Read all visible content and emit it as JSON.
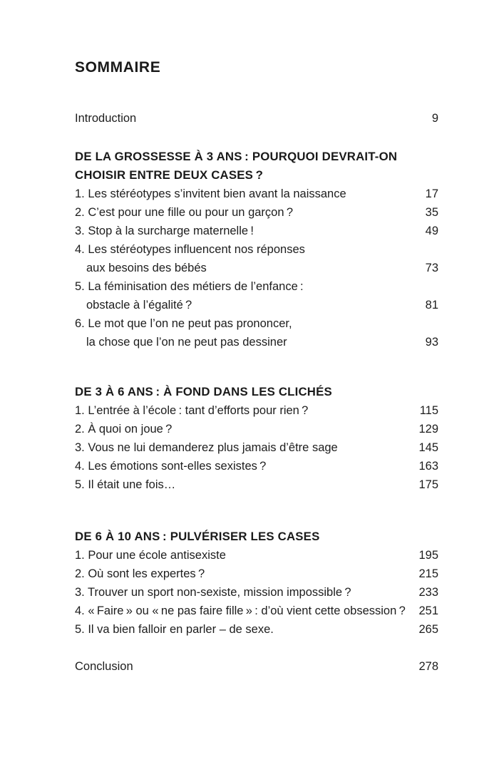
{
  "document": {
    "title": "SOMMAIRE",
    "introduction": {
      "label": "Introduction",
      "page": "9"
    },
    "sections": [
      {
        "heading_lines": [
          "DE LA GROSSESSE À 3 ANS : POURQUOI DEVRAIT-ON",
          "CHOISIR ENTRE DEUX CASES ?"
        ],
        "items": [
          {
            "text": "1. Les stéréotypes s’invitent bien avant la naissance",
            "page": "17"
          },
          {
            "text": "2. C’est pour une fille ou pour un garçon ?",
            "page": "35"
          },
          {
            "text": "3. Stop à la surcharge maternelle !",
            "page": "49"
          },
          {
            "line1": "4. Les stéréotypes influencent nos réponses",
            "line2": "aux besoins des bébés",
            "page": "73"
          },
          {
            "line1": "5. La féminisation des métiers de l’enfance :",
            "line2": "obstacle à l’égalité ?",
            "page": "81"
          },
          {
            "line1": "6. Le mot que l’on ne peut pas prononcer,",
            "line2": "la chose que l’on ne peut pas dessiner",
            "page": "93"
          }
        ]
      },
      {
        "heading_lines": [
          "DE 3 À 6 ANS : À FOND DANS LES CLICHÉS"
        ],
        "items": [
          {
            "text": "1. L’entrée à l’école : tant d’efforts pour rien ?",
            "page": "115"
          },
          {
            "text": "2. À quoi on joue ?",
            "page": "129"
          },
          {
            "text": "3. Vous ne lui demanderez plus jamais d’être sage",
            "page": "145"
          },
          {
            "text": "4. Les émotions sont-elles sexistes ?",
            "page": "163"
          },
          {
            "text": "5. Il était une fois…",
            "page": "175"
          }
        ]
      },
      {
        "heading_lines": [
          "DE 6 À 10 ANS : PULVÉRISER LES CASES"
        ],
        "items": [
          {
            "text": "1. Pour une école antisexiste",
            "page": "195"
          },
          {
            "text": "2. Où sont les expertes ?",
            "page": "215"
          },
          {
            "text": "3. Trouver un sport non-sexiste, mission impossible ?",
            "page": "233"
          },
          {
            "text": "4. « Faire » ou « ne pas faire fille » : d’où vient cette obsession ?",
            "page": "251"
          },
          {
            "text": "5. Il va bien falloir en parler – de sexe.",
            "page": "265"
          }
        ]
      }
    ],
    "conclusion": {
      "label": "Conclusion",
      "page": "278"
    }
  }
}
